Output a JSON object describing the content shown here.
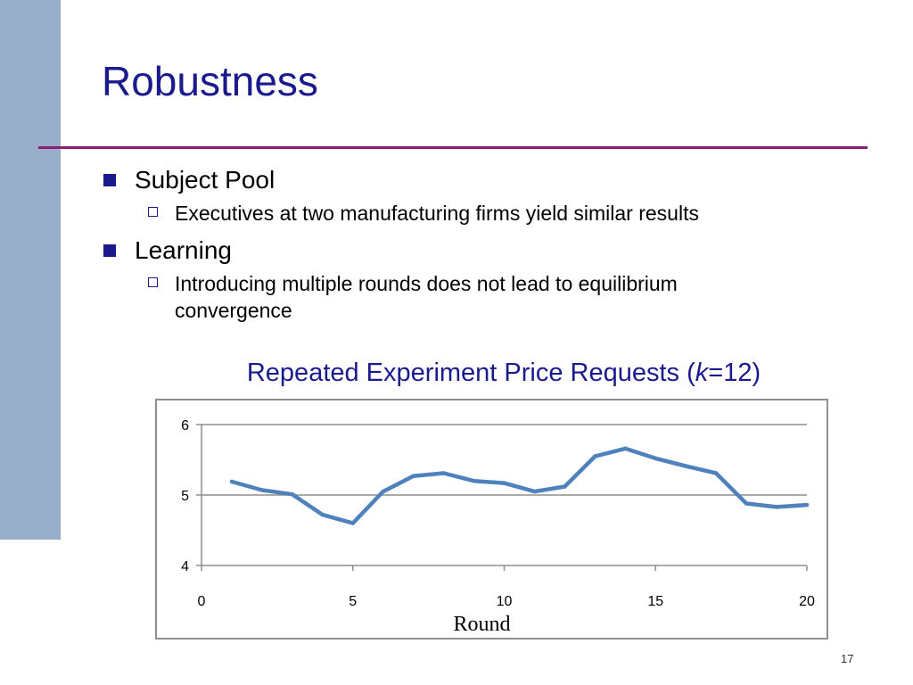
{
  "slide": {
    "title": "Robustness",
    "bullets": [
      {
        "text": "Subject Pool",
        "sub": [
          "Executives at two manufacturing firms yield similar results"
        ]
      },
      {
        "text": "Learning",
        "sub": [
          "Introducing multiple rounds does not lead to equilibrium convergence"
        ]
      }
    ],
    "chart_title": {
      "main": "Repeated Experiment Price Requests (",
      "var": "k",
      "rest": "=12)"
    },
    "page_number": "17"
  },
  "colors": {
    "title": "#1a1a8c",
    "accent_rule": "#8b1e74",
    "side_bar": "#98aecb",
    "series_line": "#4f81bd",
    "grid": "#8e8e8e"
  },
  "chart_data": {
    "type": "line",
    "title": "Repeated Experiment Price Requests (k=12)",
    "xlabel": "Round",
    "ylabel": "",
    "xlim": [
      0,
      20
    ],
    "ylim": [
      4,
      6
    ],
    "x_ticks": [
      0,
      5,
      10,
      15,
      20
    ],
    "y_ticks": [
      4,
      5,
      6
    ],
    "grid": true,
    "legend": "none",
    "series": [
      {
        "x": [
          1,
          2,
          3,
          4,
          5,
          6,
          7,
          8,
          9,
          10,
          11,
          12,
          13,
          14,
          15,
          16,
          17,
          18,
          19,
          20
        ],
        "values": [
          5.19,
          5.07,
          5.01,
          4.72,
          4.6,
          5.05,
          5.27,
          5.31,
          5.2,
          5.17,
          5.05,
          5.12,
          5.55,
          5.66,
          5.52,
          5.41,
          5.31,
          4.88,
          4.83,
          4.86
        ]
      }
    ]
  }
}
